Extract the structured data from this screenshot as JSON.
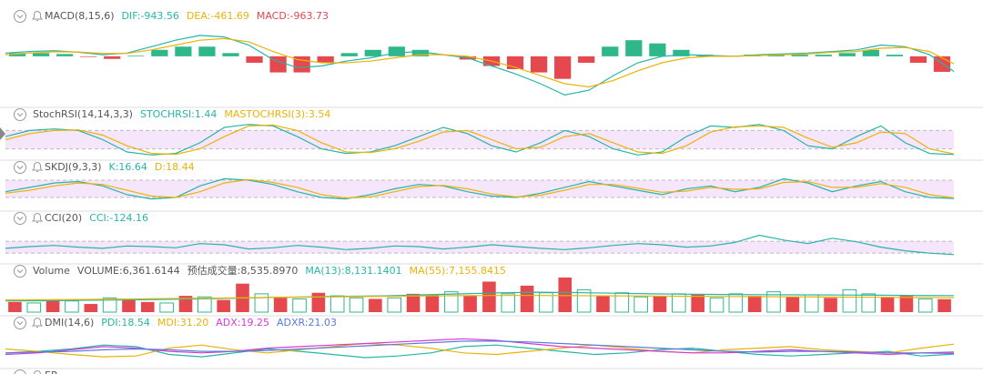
{
  "panels": [
    {
      "title": "MACD(8,15,6)",
      "ylim": [
        -3000,
        1800
      ],
      "legend": [
        {
          "text": "DIF:-943.56",
          "color": "#26b5a8"
        },
        {
          "text": "DEA:-461.69",
          "color": "#eab308"
        },
        {
          "text": "MACD:-963.73",
          "color": "#e5484d"
        }
      ],
      "bars": {
        "values": [
          200,
          200,
          140,
          -40,
          -160,
          40,
          400,
          600,
          600,
          200,
          -400,
          -1000,
          -1000,
          -400,
          200,
          400,
          600,
          400,
          0,
          -200,
          -600,
          -800,
          -1000,
          -1400,
          -400,
          600,
          1000,
          800,
          400,
          100,
          0,
          100,
          100,
          100,
          100,
          200,
          400,
          100,
          -400,
          -963.73
        ]
      },
      "series": [
        {
          "color": "#26b5a8",
          "values": [
            200,
            300,
            350,
            250,
            100,
            200,
            600,
            1000,
            1300,
            1200,
            700,
            -200,
            -700,
            -600,
            -300,
            -100,
            200,
            300,
            100,
            -100,
            -600,
            -1100,
            -1700,
            -2400,
            -2100,
            -1200,
            -400,
            0,
            100,
            50,
            0,
            100,
            150,
            200,
            300,
            400,
            700,
            600,
            100,
            -943.56
          ]
        },
        {
          "color": "#eab308",
          "values": [
            100,
            200,
            280,
            270,
            180,
            180,
            400,
            700,
            1000,
            1100,
            900,
            300,
            -200,
            -400,
            -400,
            -300,
            -100,
            100,
            100,
            0,
            -300,
            -700,
            -1200,
            -1700,
            -1900,
            -1500,
            -900,
            -400,
            -100,
            0,
            0,
            50,
            100,
            150,
            250,
            300,
            500,
            550,
            300,
            -461.69
          ]
        }
      ]
    },
    {
      "title": "StochRSI(14,14,3,3)",
      "ylim": [
        -5,
        105
      ],
      "band": [
        20,
        80
      ],
      "legend": [
        {
          "text": "STOCHRSI:1.44",
          "color": "#26b5a8"
        },
        {
          "text": "MASTOCHRSI(3):3.54",
          "color": "#eab308"
        }
      ],
      "series": [
        {
          "color": "#26b5a8",
          "values": [
            60,
            80,
            85,
            80,
            50,
            10,
            0,
            5,
            40,
            90,
            100,
            95,
            60,
            20,
            5,
            10,
            30,
            60,
            90,
            70,
            30,
            10,
            40,
            80,
            60,
            20,
            0,
            10,
            60,
            95,
            90,
            100,
            80,
            30,
            20,
            60,
            95,
            40,
            5,
            1.44
          ]
        },
        {
          "color": "#eab308",
          "values": [
            50,
            70,
            80,
            82,
            65,
            30,
            5,
            2,
            20,
            60,
            95,
            98,
            80,
            40,
            10,
            8,
            20,
            45,
            75,
            80,
            50,
            20,
            25,
            60,
            70,
            40,
            10,
            5,
            30,
            75,
            92,
            95,
            90,
            55,
            25,
            40,
            75,
            70,
            20,
            3.54
          ]
        }
      ]
    },
    {
      "title": "SKDJ(9,3,3)",
      "ylim": [
        -5,
        105
      ],
      "band": [
        20,
        80
      ],
      "legend": [
        {
          "text": "K:16.64",
          "color": "#26b5a8"
        },
        {
          "text": "D:18.44",
          "color": "#eab308"
        }
      ],
      "series": [
        {
          "color": "#26b5a8",
          "values": [
            40,
            55,
            70,
            75,
            60,
            30,
            15,
            20,
            60,
            85,
            80,
            65,
            40,
            20,
            15,
            30,
            50,
            65,
            60,
            40,
            25,
            20,
            35,
            55,
            75,
            60,
            45,
            30,
            50,
            60,
            40,
            55,
            85,
            70,
            40,
            60,
            75,
            40,
            20,
            16.64
          ]
        },
        {
          "color": "#eab308",
          "values": [
            35,
            45,
            60,
            70,
            65,
            45,
            25,
            20,
            40,
            70,
            82,
            72,
            55,
            30,
            18,
            22,
            40,
            58,
            62,
            50,
            32,
            22,
            28,
            45,
            65,
            65,
            52,
            38,
            42,
            55,
            48,
            50,
            72,
            75,
            55,
            55,
            68,
            55,
            30,
            18.44
          ]
        }
      ]
    },
    {
      "title": "CCI(20)",
      "ylim": [
        -250,
        300
      ],
      "band": [
        -100,
        100
      ],
      "legend": [
        {
          "text": "CCI:-124.16",
          "color": "#26b5a8"
        }
      ],
      "series": [
        {
          "color": "#26b5a8",
          "values": [
            -20,
            10,
            30,
            0,
            -20,
            20,
            10,
            -10,
            60,
            40,
            -30,
            -10,
            30,
            0,
            -40,
            -20,
            20,
            10,
            -30,
            0,
            40,
            10,
            -20,
            -40,
            -10,
            30,
            60,
            40,
            0,
            20,
            80,
            200,
            120,
            60,
            150,
            90,
            0,
            -60,
            -100,
            -124.16
          ]
        }
      ]
    },
    {
      "title": "Volume",
      "ylim": [
        0,
        17000
      ],
      "legend": [
        {
          "text": "VOLUME:6,361.6144",
          "color": "#555555"
        },
        {
          "text": "预估成交量:8,535.8970",
          "color": "#555555"
        },
        {
          "text": "MA(13):8,131.1401",
          "color": "#26b5a8"
        },
        {
          "text": "MA(55):7,155.8415",
          "color": "#eab308"
        }
      ],
      "bars": {
        "values": [
          5000,
          4500,
          6000,
          5500,
          4000,
          7000,
          6500,
          5000,
          4500,
          8000,
          7500,
          6000,
          14000,
          9000,
          7000,
          6500,
          9500,
          8000,
          7000,
          6500,
          7000,
          9000,
          8500,
          10000,
          8000,
          15000,
          9000,
          13000,
          9500,
          17000,
          11000,
          8000,
          9500,
          7500,
          8000,
          9000,
          8500,
          7000,
          9000,
          8000,
          10000,
          7500,
          8500,
          7000,
          11000,
          9000,
          7500,
          8000,
          6500,
          6361.6144
        ],
        "up": [
          0,
          1,
          0,
          1,
          0,
          1,
          0,
          0,
          1,
          0,
          1,
          0,
          0,
          1,
          0,
          1,
          0,
          1,
          1,
          0,
          1,
          0,
          0,
          1,
          0,
          0,
          1,
          0,
          1,
          0,
          1,
          0,
          1,
          1,
          0,
          1,
          0,
          1,
          1,
          0,
          1,
          0,
          1,
          0,
          1,
          1,
          0,
          0,
          1,
          0
        ]
      },
      "series": [
        {
          "color": "#26b5a8",
          "values": [
            5500,
            5600,
            5800,
            6000,
            6200,
            6500,
            6800,
            7200,
            7500,
            7800,
            8000,
            8500,
            9000,
            9500,
            9800,
            9600,
            9300,
            9000,
            8800,
            8700,
            8600,
            8500,
            8400,
            8300,
            8200,
            8131.1401
          ]
        },
        {
          "color": "#eab308",
          "values": [
            6000,
            6100,
            6200,
            6400,
            6600,
            6800,
            7000,
            7200,
            7400,
            7600,
            7800,
            8000,
            8100,
            8200,
            8200,
            8100,
            8000,
            7900,
            7800,
            7700,
            7600,
            7500,
            7400,
            7300,
            7200,
            7155.8415
          ]
        }
      ]
    },
    {
      "title": "DMI(14,6)",
      "ylim": [
        0,
        50
      ],
      "legend": [
        {
          "text": "PDI:18.54",
          "color": "#26b5a8"
        },
        {
          "text": "MDI:31.20",
          "color": "#eab308"
        },
        {
          "text": "ADX:19.25",
          "color": "#d63ad6"
        },
        {
          "text": "ADXR:21.03",
          "color": "#5b7bdc"
        }
      ],
      "series": [
        {
          "color": "#26b5a8",
          "values": [
            20,
            22,
            25,
            30,
            28,
            18,
            15,
            20,
            25,
            22,
            18,
            14,
            16,
            20,
            28,
            30,
            26,
            22,
            18,
            20,
            24,
            26,
            22,
            18,
            16,
            18,
            20,
            22,
            16,
            18.54
          ]
        },
        {
          "color": "#eab308",
          "values": [
            25,
            22,
            18,
            15,
            16,
            26,
            30,
            24,
            20,
            24,
            28,
            32,
            30,
            26,
            20,
            18,
            22,
            26,
            30,
            26,
            22,
            20,
            24,
            26,
            28,
            24,
            22,
            20,
            26,
            31.2
          ]
        },
        {
          "color": "#d63ad6",
          "values": [
            18,
            20,
            24,
            28,
            26,
            22,
            20,
            22,
            26,
            28,
            30,
            32,
            34,
            36,
            38,
            36,
            32,
            28,
            26,
            24,
            22,
            20,
            20,
            22,
            24,
            22,
            20,
            18,
            20,
            19.25
          ]
        },
        {
          "color": "#5b7bdc",
          "values": [
            20,
            21,
            22,
            24,
            25,
            24,
            22,
            22,
            23,
            25,
            27,
            29,
            31,
            33,
            35,
            35,
            34,
            32,
            30,
            28,
            26,
            24,
            22,
            21,
            22,
            22,
            21,
            20,
            20,
            21.03
          ]
        }
      ]
    },
    {
      "title": "ER",
      "legend": []
    }
  ]
}
